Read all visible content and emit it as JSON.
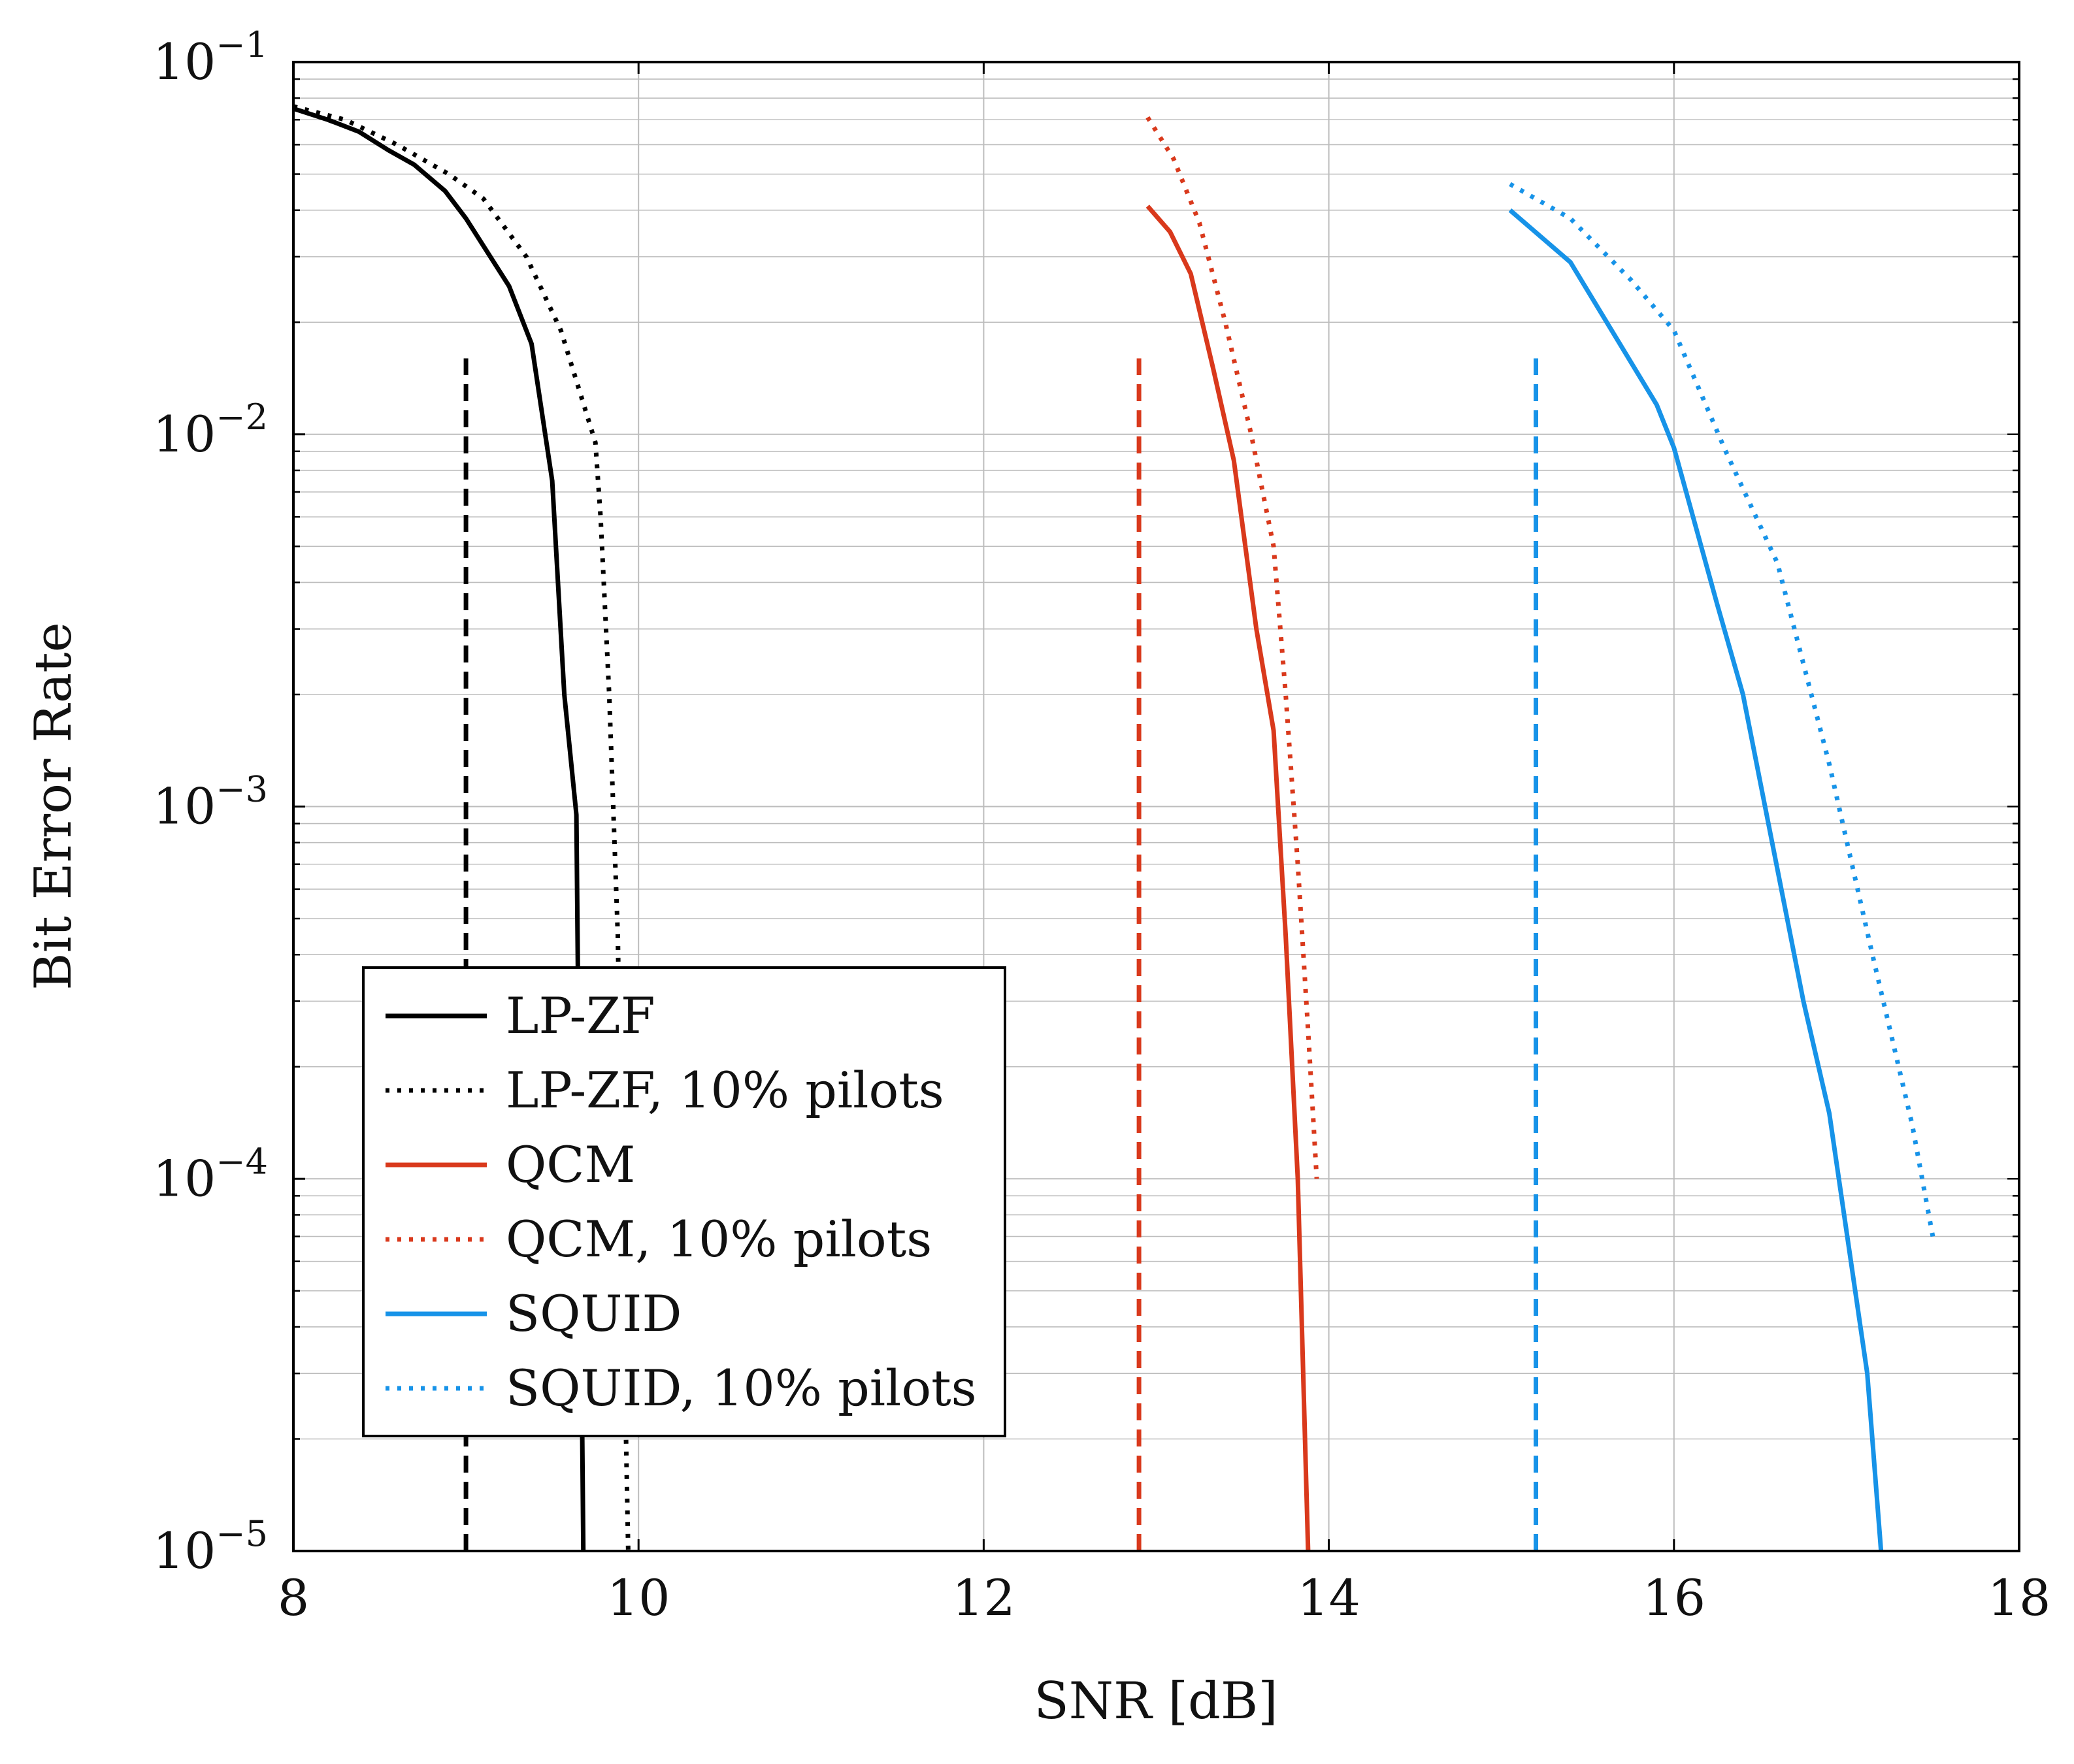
{
  "chart_data": {
    "type": "line",
    "title": "",
    "xlabel": "SNR [dB]",
    "ylabel": "Bit Error Rate",
    "xscale": "linear",
    "yscale": "log",
    "xlim": [
      8,
      18
    ],
    "ylim": [
      1e-05,
      0.1
    ],
    "grid": true,
    "legend_position": "bottom-left",
    "x_ticks": [
      8,
      10,
      12,
      14,
      16,
      18
    ],
    "x_tick_labels": [
      "8",
      "10",
      "12",
      "14",
      "16",
      "18"
    ],
    "y_ticks": [
      1e-05,
      0.0001,
      0.001,
      0.01,
      0.1
    ],
    "y_tick_labels": [
      {
        "base": "10",
        "exp": "−5"
      },
      {
        "base": "10",
        "exp": "−4"
      },
      {
        "base": "10",
        "exp": "−3"
      },
      {
        "base": "10",
        "exp": "−2"
      },
      {
        "base": "10",
        "exp": "−1"
      }
    ],
    "series": [
      {
        "name": "LP-ZF",
        "color": "#000000",
        "style": "solid",
        "x": [
          8.0,
          8.2,
          8.38,
          8.55,
          8.7,
          8.88,
          9.0,
          9.25,
          9.38,
          9.5,
          9.57,
          9.64,
          9.66,
          9.68
        ],
        "y": [
          0.075,
          0.07,
          0.065,
          0.058,
          0.053,
          0.045,
          0.038,
          0.025,
          0.0175,
          0.0075,
          0.002,
          0.00095,
          0.0001,
          1e-05
        ]
      },
      {
        "name": "LP-ZF, 10% pilots",
        "color": "#000000",
        "style": "dotted",
        "x": [
          8.0,
          8.3,
          8.6,
          8.9,
          9.1,
          9.35,
          9.55,
          9.75,
          9.78,
          9.83,
          9.88,
          9.92,
          9.94
        ],
        "y": [
          0.076,
          0.07,
          0.06,
          0.05,
          0.043,
          0.03,
          0.019,
          0.0095,
          0.006,
          0.002,
          0.00045,
          3e-05,
          1e-05
        ]
      },
      {
        "name": "QCM",
        "color": "#d9391c",
        "style": "solid",
        "x": [
          12.95,
          13.08,
          13.2,
          13.33,
          13.45,
          13.58,
          13.68,
          13.75,
          13.82,
          13.88
        ],
        "y": [
          0.041,
          0.035,
          0.027,
          0.015,
          0.0085,
          0.003,
          0.0016,
          0.00045,
          0.0001,
          1e-05
        ]
      },
      {
        "name": "QCM, 10% pilots",
        "color": "#d9391c",
        "style": "dotted",
        "x": [
          12.95,
          13.1,
          13.25,
          13.4,
          13.55,
          13.68,
          13.75,
          13.82,
          13.88,
          13.93
        ],
        "y": [
          0.071,
          0.055,
          0.037,
          0.02,
          0.01,
          0.005,
          0.002,
          0.0007,
          0.00025,
          0.0001
        ]
      },
      {
        "name": "SQUID",
        "color": "#1793e8",
        "style": "solid",
        "x": [
          15.05,
          15.4,
          15.9,
          16.0,
          16.25,
          16.4,
          16.75,
          16.9,
          17.12,
          17.2
        ],
        "y": [
          0.04,
          0.029,
          0.012,
          0.0092,
          0.0035,
          0.002,
          0.0003,
          0.00015,
          3e-05,
          1e-05
        ]
      },
      {
        "name": "SQUID, 10% pilots",
        "color": "#1793e8",
        "style": "dotted",
        "x": [
          15.05,
          15.4,
          15.75,
          16.0,
          16.3,
          16.6,
          16.9,
          17.15,
          17.38,
          17.5
        ],
        "y": [
          0.047,
          0.038,
          0.026,
          0.019,
          0.009,
          0.0045,
          0.0013,
          0.0004,
          0.00014,
          7e-05
        ]
      }
    ],
    "vertical_markers": [
      {
        "name": "LP-ZF threshold",
        "x": 9.0,
        "y_range": [
          1e-05,
          0.016
        ],
        "color": "#000000",
        "style": "dashed"
      },
      {
        "name": "QCM threshold",
        "x": 12.9,
        "y_range": [
          1e-05,
          0.016
        ],
        "color": "#d9391c",
        "style": "dashed"
      },
      {
        "name": "SQUID threshold",
        "x": 15.2,
        "y_range": [
          1e-05,
          0.016
        ],
        "color": "#1793e8",
        "style": "dashed"
      }
    ]
  }
}
